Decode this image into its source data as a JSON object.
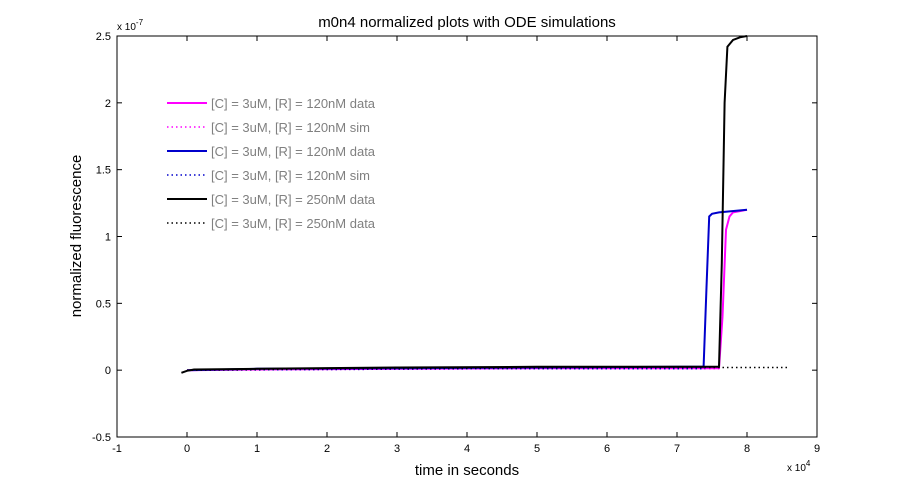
{
  "chart_data": {
    "type": "line",
    "title": "m0n4 normalized plots with ODE simulations",
    "xlabel": "time in seconds",
    "ylabel": "normalized fluorescence",
    "x_multiplier": "x 10",
    "x_exponent": "4",
    "y_multiplier": "x 10",
    "y_exponent": "-7",
    "xlim": [
      -1,
      9
    ],
    "ylim": [
      -0.5,
      2.5
    ],
    "x_ticks": [
      "-1",
      "0",
      "1",
      "2",
      "3",
      "4",
      "5",
      "6",
      "7",
      "8",
      "9"
    ],
    "y_ticks": [
      "-0.5",
      "0",
      "0.5",
      "1",
      "1.5",
      "2",
      "2.5"
    ],
    "grid": false,
    "legend_position": "top-left",
    "series": [
      {
        "name": "[C] = 3uM, [R] = 120nM data",
        "color": "#ff00ff",
        "style": "solid",
        "x": [
          0,
          1,
          3,
          5,
          7,
          7.6,
          7.65,
          7.7,
          7.75,
          7.8,
          8.0
        ],
        "y": [
          0,
          0.005,
          0.01,
          0.015,
          0.015,
          0.015,
          0.4,
          1.05,
          1.15,
          1.18,
          1.2
        ]
      },
      {
        "name": "[C] = 3uM, [R] = 120nM sim",
        "color": "#ff00ff",
        "style": "dotted",
        "x": [
          0,
          2,
          4,
          6,
          7.6
        ],
        "y": [
          0,
          0.005,
          0.01,
          0.01,
          0.01
        ]
      },
      {
        "name": "[C] = 3uM, [R] = 120nM data",
        "color": "#0000cc",
        "style": "solid",
        "x": [
          0,
          1,
          3,
          5,
          7,
          7.38,
          7.42,
          7.46,
          7.5,
          7.6,
          8.0
        ],
        "y": [
          0,
          0.01,
          0.015,
          0.02,
          0.025,
          0.025,
          0.6,
          1.15,
          1.17,
          1.18,
          1.2
        ]
      },
      {
        "name": "[C] = 3uM, [R] = 120nM sim",
        "color": "#0000cc",
        "style": "dotted",
        "x": [
          0,
          2,
          4,
          6,
          7.4
        ],
        "y": [
          0,
          0.005,
          0.01,
          0.01,
          0.01
        ]
      },
      {
        "name": "[C] = 3uM, [R] = 250nM data",
        "color": "#000000",
        "style": "solid",
        "x": [
          -0.08,
          0,
          0.1,
          1,
          3,
          5,
          7,
          7.6,
          7.64,
          7.68,
          7.72,
          7.8,
          7.9,
          8.0
        ],
        "y": [
          -0.02,
          -0.005,
          0.005,
          0.01,
          0.02,
          0.025,
          0.025,
          0.025,
          0.8,
          2.0,
          2.42,
          2.47,
          2.49,
          2.5
        ]
      },
      {
        "name": "[C] = 3uM, [R] = 250nM data",
        "color": "#000000",
        "style": "dotted",
        "x": [
          0,
          2,
          4,
          6,
          8,
          8.6
        ],
        "y": [
          0,
          0.01,
          0.015,
          0.02,
          0.02,
          0.02
        ]
      }
    ]
  }
}
